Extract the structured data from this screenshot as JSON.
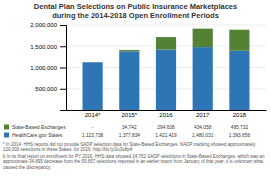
{
  "chart_data": {
    "type": "bar",
    "title": "Dental Plan Selections on Public Insurance Marketplaces\nduring the 2014-2018 Open Enrollment Periods",
    "categories": [
      "2014*",
      "2015*",
      "2016",
      "2017",
      "2018"
    ],
    "series": [
      {
        "name": "HealthCare.gov States",
        "color": "#2E75B6",
        "values": [
          1123738,
          1377834,
          1421419,
          1480031,
          1393656
        ],
        "value_labels": [
          "1,123,738",
          "1,377,834",
          "1,421,419",
          "1,480,031",
          "1,393,656"
        ]
      },
      {
        "name": "State-Based Exchanges",
        "color": "#548235",
        "values": [
          0,
          34742,
          294638,
          434058,
          495732
        ],
        "value_labels": [
          "-",
          "34,742",
          "294,638",
          "434,058",
          "495,732"
        ]
      }
    ],
    "stacked": true,
    "ylim": [
      0,
      2000000
    ],
    "yticks": [
      {
        "value": 500000,
        "label": "500,000"
      },
      {
        "value": 1000000,
        "label": "1,000,000"
      },
      {
        "value": 1500000,
        "label": "1,500,000"
      },
      {
        "value": 2000000,
        "label": "2,000,000"
      }
    ],
    "grid": true,
    "legend": "bottom",
    "data_labels": true,
    "annotations": [
      "* In 2014, HHS reports did not provide SADP selection data for State-Based Exchanges. NADP tracking showed approximately 120,000 selections in these States. for 2016: http://bit.ly/2u3o8p4",
      "b In its final report on enrollment for PY 2016, HHS data showed 24,762 SADP selections in State-Based Exchanges, which was an approximate 34,895 decrease from the 59,657 selections reported in an earlier report from January of that year; it is unknown what caused the discrepancy."
    ]
  }
}
